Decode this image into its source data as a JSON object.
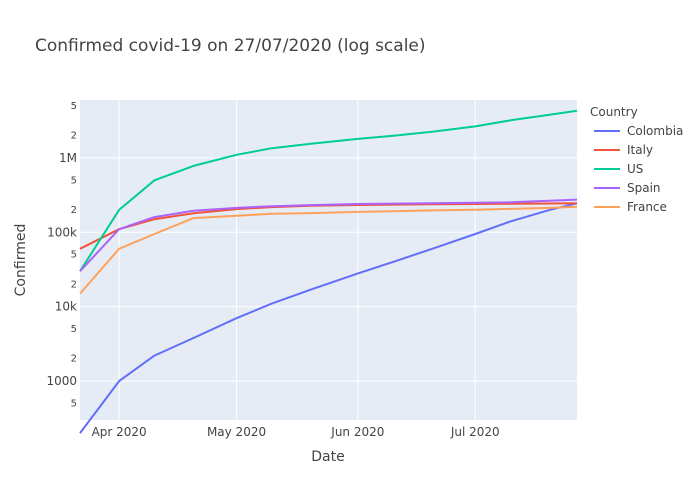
{
  "chart_data": {
    "type": "line",
    "title": "Confirmed covid-19 on 27/07/2020  (log scale)",
    "xlabel": "Date",
    "ylabel": "Confirmed",
    "y_scale": "log",
    "ylim": [
      300,
      6000000
    ],
    "xlim": [
      "2020-03-22",
      "2020-07-27"
    ],
    "x_ticks": [
      {
        "date": "2020-04-01",
        "label": "Apr 2020"
      },
      {
        "date": "2020-05-01",
        "label": "May 2020"
      },
      {
        "date": "2020-06-01",
        "label": "Jun 2020"
      },
      {
        "date": "2020-07-01",
        "label": "Jul 2020"
      }
    ],
    "y_major_ticks": [
      {
        "value": 1000,
        "label": "1000"
      },
      {
        "value": 10000,
        "label": "10k"
      },
      {
        "value": 100000,
        "label": "100k"
      },
      {
        "value": 1000000,
        "label": "1M"
      }
    ],
    "y_minor_ticks": [
      {
        "value": 500,
        "label": "5"
      },
      {
        "value": 2000,
        "label": "2"
      },
      {
        "value": 5000,
        "label": "5"
      },
      {
        "value": 20000,
        "label": "2"
      },
      {
        "value": 50000,
        "label": "5"
      },
      {
        "value": 200000,
        "label": "2"
      },
      {
        "value": 500000,
        "label": "5"
      },
      {
        "value": 2000000,
        "label": "2"
      },
      {
        "value": 5000000,
        "label": "5"
      }
    ],
    "grid": true,
    "legend_position": "right",
    "legend_title": "Country",
    "x": [
      "2020-03-22",
      "2020-04-01",
      "2020-04-10",
      "2020-04-20",
      "2020-05-01",
      "2020-05-10",
      "2020-05-20",
      "2020-06-01",
      "2020-06-10",
      "2020-06-20",
      "2020-07-01",
      "2020-07-10",
      "2020-07-20",
      "2020-07-27"
    ],
    "series": [
      {
        "name": "Colombia",
        "color": "#636efa",
        "values": [
          200,
          1000,
          2200,
          3800,
          7000,
          11000,
          17000,
          28000,
          40000,
          60000,
          95000,
          140000,
          200000,
          245000
        ]
      },
      {
        "name": "Italy",
        "color": "#ef553b",
        "values": [
          60000,
          110000,
          150000,
          180000,
          205000,
          218000,
          227000,
          233000,
          236000,
          238000,
          240000,
          242000,
          244000,
          246000
        ]
      },
      {
        "name": "US",
        "color": "#00cc96",
        "values": [
          30000,
          200000,
          500000,
          780000,
          1100000,
          1350000,
          1550000,
          1800000,
          1980000,
          2250000,
          2650000,
          3200000,
          3800000,
          4300000
        ]
      },
      {
        "name": "Spain",
        "color": "#ab63fa",
        "values": [
          30000,
          110000,
          160000,
          195000,
          213000,
          224000,
          232000,
          240000,
          243000,
          246000,
          250000,
          253000,
          265000,
          275000
        ]
      },
      {
        "name": "France",
        "color": "#ffa15a",
        "values": [
          15000,
          60000,
          95000,
          155000,
          167000,
          177000,
          181000,
          188000,
          192000,
          197000,
          201000,
          206000,
          213000,
          220000
        ]
      }
    ]
  }
}
